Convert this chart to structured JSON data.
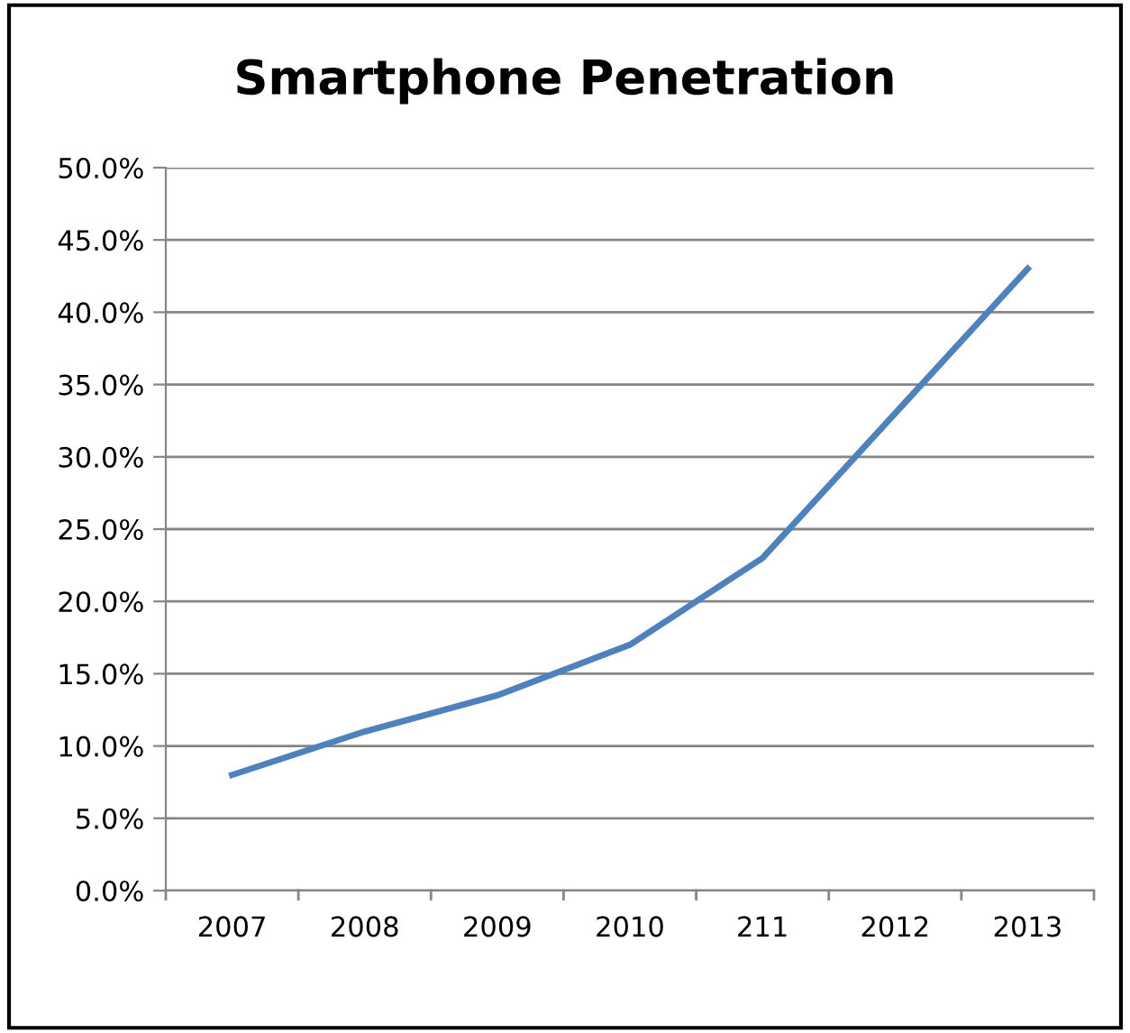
{
  "chart_data": {
    "type": "line",
    "title": "Smartphone Penetration",
    "categories": [
      "2007",
      "2008",
      "2009",
      "2010",
      "211",
      "2012",
      "2013"
    ],
    "series": [
      {
        "color": "#4f81bd",
        "values": [
          8.0,
          11.0,
          13.5,
          17.0,
          23.0,
          33.0,
          43.0
        ]
      }
    ],
    "ylim": [
      0,
      50
    ],
    "yticks": [
      {
        "value": 0,
        "label": "0.0%"
      },
      {
        "value": 5,
        "label": "5.0%"
      },
      {
        "value": 10,
        "label": "10.0%"
      },
      {
        "value": 15,
        "label": "15.0%"
      },
      {
        "value": 20,
        "label": "20.0%"
      },
      {
        "value": 25,
        "label": "25.0%"
      },
      {
        "value": 30,
        "label": "30.0%"
      },
      {
        "value": 35,
        "label": "35.0%"
      },
      {
        "value": 40,
        "label": "40.0%"
      },
      {
        "value": 45,
        "label": "45.0%"
      },
      {
        "value": 50,
        "label": "50.0%"
      }
    ],
    "grid": "y",
    "legend": false,
    "marker": "none",
    "line_style": "solid"
  }
}
